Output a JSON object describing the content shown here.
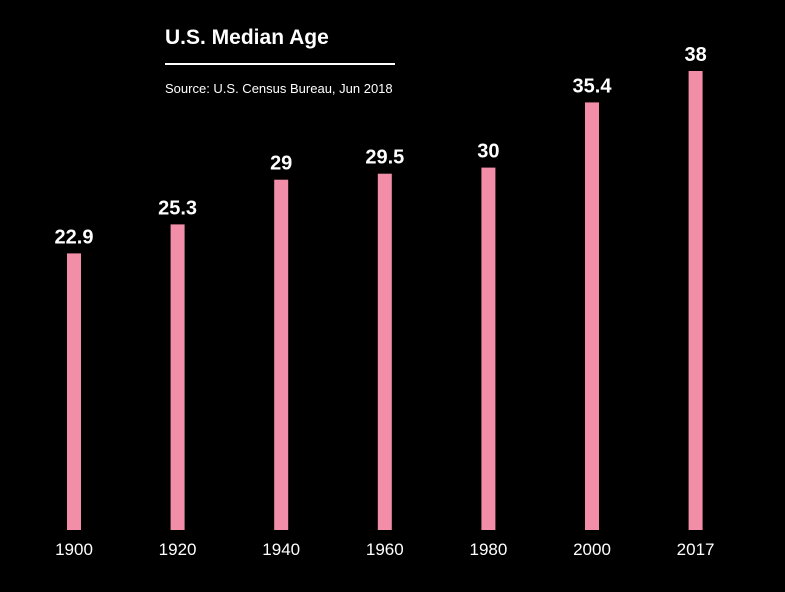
{
  "header": {
    "title": "U.S. Median Age",
    "source": "Source: U.S. Census Bureau, Jun 2018"
  },
  "colors": {
    "background": "#000000",
    "bar": "#f38ea9",
    "text": "#ffffff"
  },
  "chart_data": {
    "type": "bar",
    "title": "U.S. Median Age",
    "subtitle": "Source: U.S. Census Bureau, Jun 2018",
    "xlabel": "",
    "ylabel": "",
    "categories": [
      "1900",
      "1920",
      "1940",
      "1960",
      "1980",
      "2000",
      "2017"
    ],
    "values": [
      22.9,
      25.3,
      29,
      29.5,
      30,
      35.4,
      38
    ],
    "value_labels": [
      "22.9",
      "25.3",
      "29",
      "29.5",
      "30",
      "35.4",
      "38"
    ],
    "ylim": [
      0,
      38
    ],
    "grid": false,
    "legend": "none",
    "data_labels": true
  }
}
